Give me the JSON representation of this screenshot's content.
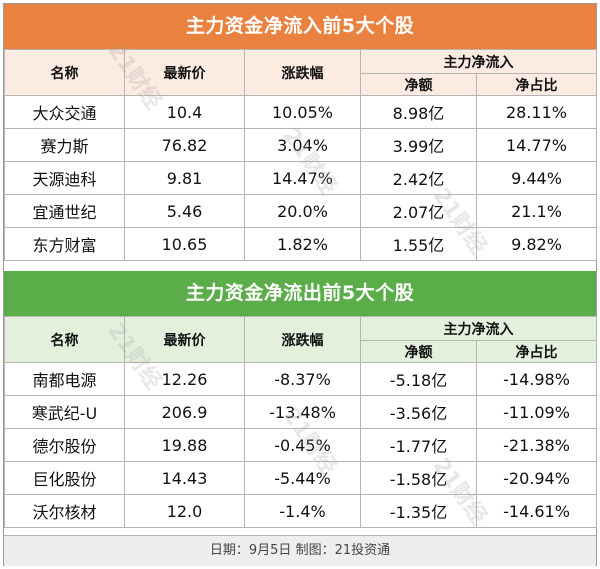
{
  "inflow": {
    "title": "主力资金净流入前5大个股",
    "headers": {
      "name": "名称",
      "price": "最新价",
      "change": "涨跌幅",
      "group": "主力净流入",
      "amount": "净额",
      "ratio": "净占比"
    },
    "rows": [
      {
        "name": "大众交通",
        "price": "10.4",
        "change": "10.05%",
        "amount": "8.98亿",
        "ratio": "28.11%"
      },
      {
        "name": "赛力斯",
        "price": "76.82",
        "change": "3.04%",
        "amount": "3.99亿",
        "ratio": "14.77%"
      },
      {
        "name": "天源迪科",
        "price": "9.81",
        "change": "14.47%",
        "amount": "2.42亿",
        "ratio": "9.44%"
      },
      {
        "name": "宜通世纪",
        "price": "5.46",
        "change": "20.0%",
        "amount": "2.07亿",
        "ratio": "21.1%"
      },
      {
        "name": "东方财富",
        "price": "10.65",
        "change": "1.82%",
        "amount": "1.55亿",
        "ratio": "9.82%"
      }
    ]
  },
  "outflow": {
    "title": "主力资金净流出前5大个股",
    "headers": {
      "name": "名称",
      "price": "最新价",
      "change": "涨跌幅",
      "group": "主力净流入",
      "amount": "净额",
      "ratio": "净占比"
    },
    "rows": [
      {
        "name": "南都电源",
        "price": "12.26",
        "change": "-8.37%",
        "amount": "-5.18亿",
        "ratio": "-14.98%"
      },
      {
        "name": "寒武纪-U",
        "price": "206.9",
        "change": "-13.48%",
        "amount": "-3.56亿",
        "ratio": "-11.09%"
      },
      {
        "name": "德尔股份",
        "price": "19.88",
        "change": "-0.45%",
        "amount": "-1.77亿",
        "ratio": "-21.38%"
      },
      {
        "name": "巨化股份",
        "price": "14.43",
        "change": "-5.44%",
        "amount": "-1.58亿",
        "ratio": "-20.94%"
      },
      {
        "name": "沃尔核材",
        "price": "12.0",
        "change": "-1.4%",
        "amount": "-1.35亿",
        "ratio": "-14.61%"
      }
    ]
  },
  "footer": "日期：9月5日 制图：21投资通",
  "watermark": "21财经",
  "colors": {
    "inflow_banner": "#e9813f",
    "outflow_banner": "#5bad4a"
  }
}
